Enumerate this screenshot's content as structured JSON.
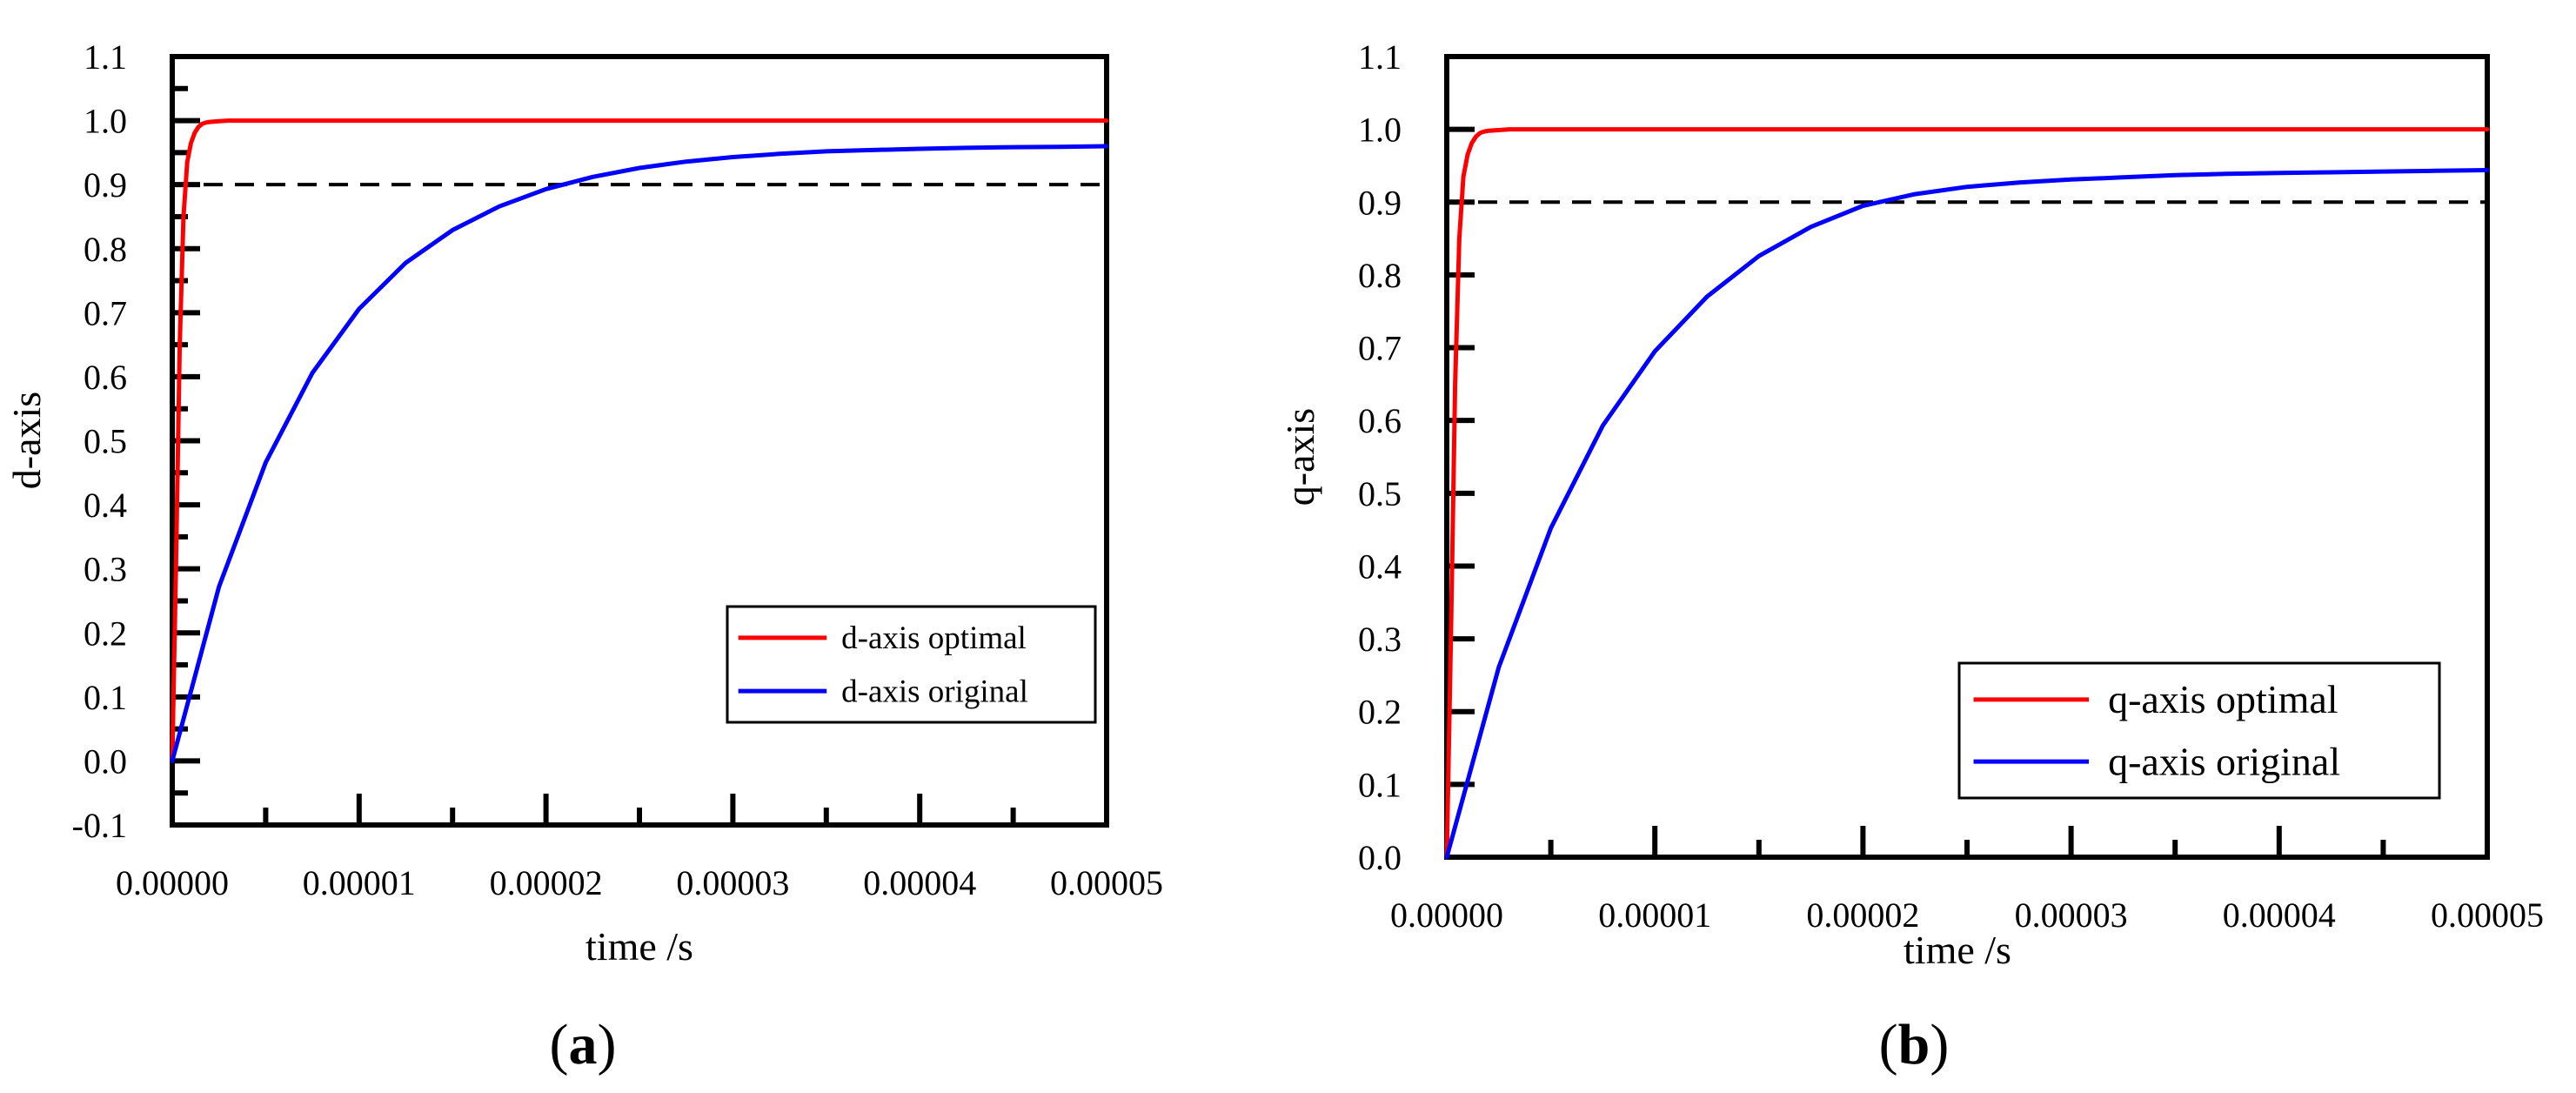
{
  "chart_data": [
    {
      "type": "line",
      "panel_label": "a",
      "title": "",
      "xlabel": "time /s",
      "ylabel": "d-axis",
      "xlim": [
        0,
        5e-05
      ],
      "ylim": [
        -0.1,
        1.1
      ],
      "xticks": [
        "0.00000",
        "0.00001",
        "0.00002",
        "0.00003",
        "0.00004",
        "0.00005"
      ],
      "yticks": [
        "-0.1",
        "0.0",
        "0.1",
        "0.2",
        "0.3",
        "0.4",
        "0.5",
        "0.6",
        "0.7",
        "0.8",
        "0.9",
        "1.0",
        "1.1"
      ],
      "reference_line": {
        "y": 0.9,
        "style": "dashed",
        "color": "#000000"
      },
      "legend": {
        "placement": "lower-right"
      },
      "series": [
        {
          "name": "d-axis optimal",
          "color": "#ff0000",
          "x": [
            0,
            2e-07,
            4e-07,
            6e-07,
            8e-07,
            1e-06,
            1.2e-06,
            1.4e-06,
            1.6e-06,
            1.8e-06,
            2e-06,
            2.5e-06,
            3e-06,
            3.5e-06,
            4e-06,
            5e-06,
            1e-05,
            2e-05,
            3e-05,
            4e-05,
            5e-05
          ],
          "values": [
            0.0,
            0.305,
            0.65,
            0.85,
            0.935,
            0.965,
            0.981,
            0.99,
            0.995,
            0.997,
            0.998,
            0.999,
            1.0,
            1.0,
            1.0,
            1.0,
            1.0,
            1.0,
            1.0,
            1.0,
            1.0
          ]
        },
        {
          "name": "d-axis original",
          "color": "#0000ff",
          "x": [
            0,
            2.5e-06,
            5e-06,
            7.5e-06,
            1e-05,
            1.25e-05,
            1.5e-05,
            1.75e-05,
            2e-05,
            2.25e-05,
            2.5e-05,
            2.75e-05,
            3e-05,
            3.25e-05,
            3.5e-05,
            3.75e-05,
            4e-05,
            4.25e-05,
            4.5e-05,
            4.75e-05,
            5e-05
          ],
          "values": [
            0.0,
            0.272,
            0.466,
            0.606,
            0.706,
            0.778,
            0.829,
            0.866,
            0.893,
            0.912,
            0.926,
            0.936,
            0.943,
            0.948,
            0.952,
            0.954,
            0.956,
            0.9575,
            0.9585,
            0.959,
            0.96
          ]
        }
      ]
    },
    {
      "type": "line",
      "panel_label": "b",
      "title": "",
      "xlabel": "time /s",
      "ylabel": "q-axis",
      "xlim": [
        0,
        5e-05
      ],
      "ylim": [
        0.0,
        1.1
      ],
      "xticks": [
        "0.00000",
        "0.00001",
        "0.00002",
        "0.00003",
        "0.00004",
        "0.00005"
      ],
      "yticks": [
        "0.0",
        "0.1",
        "0.2",
        "0.3",
        "0.4",
        "0.5",
        "0.6",
        "0.7",
        "0.8",
        "0.9",
        "1.0",
        "1.1"
      ],
      "reference_line": {
        "y": 0.9,
        "style": "dashed",
        "color": "#000000"
      },
      "legend": {
        "placement": "lower-right"
      },
      "series": [
        {
          "name": "q-axis optimal",
          "color": "#ff0000",
          "x": [
            0,
            2e-07,
            4e-07,
            6e-07,
            8e-07,
            1e-06,
            1.2e-06,
            1.4e-06,
            1.6e-06,
            1.8e-06,
            2e-06,
            2.5e-06,
            3e-06,
            3.5e-06,
            4e-06,
            5e-06,
            1e-05,
            2e-05,
            3e-05,
            4e-05,
            5e-05
          ],
          "values": [
            0.0,
            0.305,
            0.65,
            0.85,
            0.935,
            0.965,
            0.981,
            0.99,
            0.995,
            0.997,
            0.998,
            0.999,
            1.0,
            1.0,
            1.0,
            1.0,
            1.0,
            1.0,
            1.0,
            1.0,
            1.0
          ]
        },
        {
          "name": "q-axis original",
          "color": "#0000ff",
          "x": [
            0,
            2.5e-06,
            5e-06,
            7.5e-06,
            1e-05,
            1.25e-05,
            1.5e-05,
            1.75e-05,
            2e-05,
            2.25e-05,
            2.5e-05,
            2.75e-05,
            3e-05,
            3.25e-05,
            3.5e-05,
            3.75e-05,
            4e-05,
            4.25e-05,
            4.5e-05,
            4.75e-05,
            5e-05
          ],
          "values": [
            0.0,
            0.261,
            0.452,
            0.593,
            0.695,
            0.77,
            0.826,
            0.866,
            0.895,
            0.911,
            0.921,
            0.927,
            0.931,
            0.934,
            0.937,
            0.939,
            0.94,
            0.941,
            0.942,
            0.943,
            0.944
          ]
        }
      ]
    }
  ]
}
